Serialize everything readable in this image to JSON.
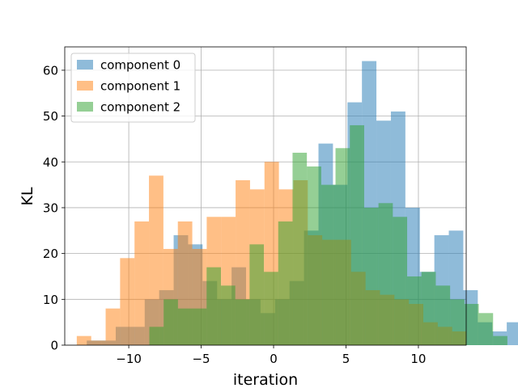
{
  "chart_data": {
    "type": "histogram",
    "title": "",
    "xlabel": "iteration",
    "ylabel": "KL",
    "xlim": [
      -14.42,
      13.3
    ],
    "ylim": [
      0,
      65.1
    ],
    "grid": true,
    "legend_position": "top-left",
    "xticks": [
      -10,
      -5,
      0,
      5,
      10
    ],
    "xtick_labels": [
      "−10",
      "−5",
      "0",
      "5",
      "10"
    ],
    "yticks": [
      0,
      10,
      20,
      30,
      40,
      50,
      60
    ],
    "ytick_labels": [
      "0",
      "10",
      "20",
      "30",
      "40",
      "50",
      "60"
    ],
    "series": [
      {
        "name": "component 0",
        "color": "#1f77b4",
        "opacity": 0.5,
        "bin_start": -12.9,
        "bin_width": 1.0,
        "counts": [
          1,
          1,
          4,
          4,
          10,
          12,
          24,
          22,
          14,
          10,
          17,
          10,
          7,
          10,
          14,
          25,
          44,
          35,
          53,
          62,
          49,
          51,
          30,
          16,
          24,
          25,
          12,
          5,
          3,
          5
        ]
      },
      {
        "name": "component 1",
        "color": "#ff7f0e",
        "opacity": 0.5,
        "bin_start": -13.59,
        "bin_width": 0.997,
        "counts": [
          2,
          1,
          8,
          19,
          27,
          37,
          21,
          27,
          21,
          28,
          28,
          36,
          34,
          40,
          34,
          36,
          24,
          23,
          23,
          16,
          12,
          11,
          10,
          9,
          5,
          4,
          3
        ]
      },
      {
        "name": "component 2",
        "color": "#2ca02c",
        "opacity": 0.5,
        "bin_start": -8.58,
        "bin_width": 0.989,
        "counts": [
          4,
          10,
          8,
          8,
          17,
          13,
          10,
          22,
          16,
          27,
          42,
          39,
          35,
          43,
          48,
          30,
          31,
          28,
          15,
          16,
          13,
          10,
          9,
          7,
          2
        ]
      }
    ]
  }
}
